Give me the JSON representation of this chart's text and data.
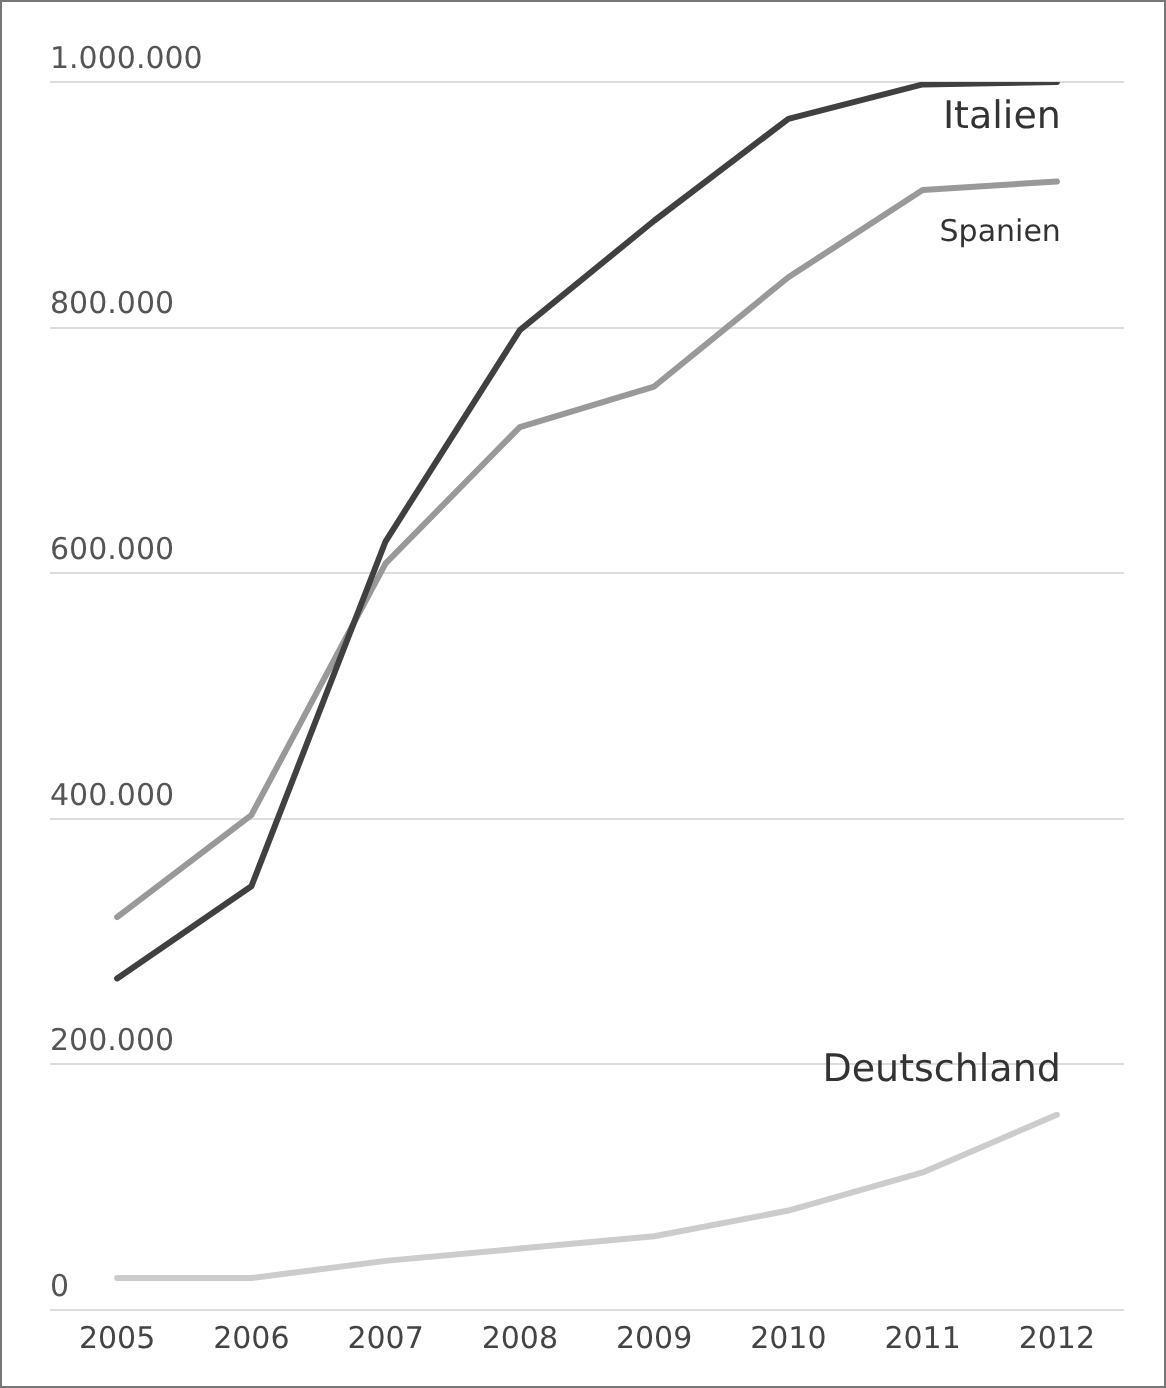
{
  "chart_data": {
    "type": "line",
    "categories": [
      "2005",
      "2006",
      "2007",
      "2008",
      "2009",
      "2010",
      "2011",
      "2012"
    ],
    "series": [
      {
        "name": "Italien",
        "color": "#404040",
        "values": [
          270000,
          345000,
          626000,
          798000,
          887000,
          970000,
          998000,
          1000000
        ]
      },
      {
        "name": "Spanien",
        "color": "#999999",
        "values": [
          320000,
          403000,
          608000,
          719000,
          752000,
          841000,
          912000,
          919000
        ]
      },
      {
        "name": "Deutschland",
        "color": "#cccccc",
        "values": [
          26000,
          26000,
          40000,
          50000,
          60000,
          81000,
          112000,
          159000
        ]
      }
    ],
    "ylim": [
      0,
      1000000
    ],
    "yticks": [
      0,
      {
        "value": 200000,
        "label": "200.000"
      },
      {
        "value": 400000,
        "label": "400.000"
      },
      {
        "value": 600000,
        "label": "600.000"
      },
      {
        "value": 800000,
        "label": "800.000"
      },
      {
        "value": 1000000,
        "label": "1.000.000"
      }
    ],
    "grid": "y",
    "legend": false,
    "marker": "none",
    "line_style": "solid"
  }
}
